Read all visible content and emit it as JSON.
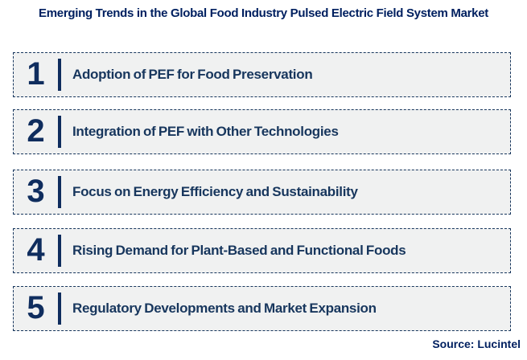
{
  "title": "Emerging Trends in the Global Food Industry Pulsed Electric Field System Market",
  "items": [
    {
      "number": "1",
      "label": "Adoption of PEF for Food Preservation"
    },
    {
      "number": "2",
      "label": "Integration of PEF with Other Technologies"
    },
    {
      "number": "3",
      "label": "Focus on Energy Efficiency and Sustainability"
    },
    {
      "number": "4",
      "label": "Rising Demand for Plant-Based and Functional Foods"
    },
    {
      "number": "5",
      "label": "Regulatory Developments and Market Expansion"
    }
  ],
  "source": "Source: Lucintel",
  "colors": {
    "title_text": "#002060",
    "item_text": "#17365D",
    "number_text": "#0F2D5E",
    "box_background": "#F0F1F1",
    "box_border": "#17365D",
    "page_background": "#FFFFFF"
  }
}
